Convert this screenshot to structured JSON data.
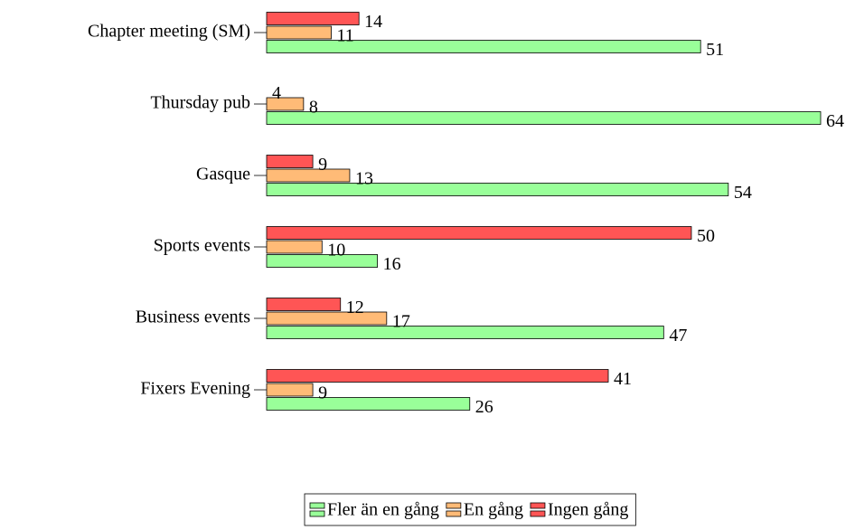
{
  "chart_data": {
    "type": "hbar",
    "categories": [
      "Chapter meeting (SM)",
      "Thursday pub",
      "Gasque",
      "Sports events",
      "Business events",
      "Fixers Evening"
    ],
    "series": [
      {
        "name": "Fler än en gång",
        "color": "#99ff99",
        "values": [
          51,
          64,
          54,
          16,
          47,
          26
        ]
      },
      {
        "name": "En gång",
        "color": "#ffbb77",
        "values": [
          11,
          8,
          13,
          10,
          17,
          9
        ]
      },
      {
        "name": "Ingen gång",
        "color": "#ff5555",
        "values": [
          14,
          4,
          9,
          50,
          12,
          41
        ]
      }
    ],
    "xlim": [
      4,
      64
    ],
    "legend": "bottom"
  }
}
